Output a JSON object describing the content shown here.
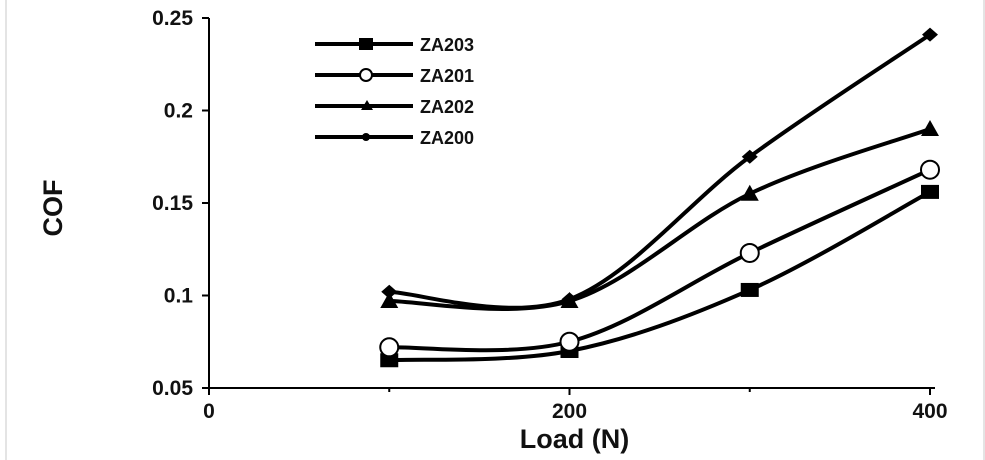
{
  "chart_data": {
    "type": "line",
    "title": "",
    "xlabel": "Load (N)",
    "ylabel": "COF",
    "xlim": [
      0,
      400
    ],
    "ylim": [
      0.05,
      0.25
    ],
    "xticks": [
      0,
      200,
      400
    ],
    "xtick_labels": [
      "0",
      "200",
      "400"
    ],
    "yticks": [
      0.05,
      0.1,
      0.15,
      0.2,
      0.25
    ],
    "ytick_labels": [
      "0.05",
      "0.1",
      "0.15",
      "0.2",
      "0.25"
    ],
    "grid": false,
    "legend_position": "top-left",
    "series": [
      {
        "name": "ZA203",
        "marker": "square",
        "x": [
          100,
          200,
          300,
          400
        ],
        "y": [
          0.065,
          0.07,
          0.103,
          0.156
        ]
      },
      {
        "name": "ZA201",
        "marker": "circle-open",
        "x": [
          100,
          200,
          300,
          400
        ],
        "y": [
          0.072,
          0.075,
          0.123,
          0.168
        ]
      },
      {
        "name": "ZA202",
        "marker": "triangle",
        "x": [
          100,
          200,
          300,
          400
        ],
        "y": [
          0.097,
          0.097,
          0.155,
          0.19
        ]
      },
      {
        "name": "ZA200",
        "marker": "diamond",
        "x": [
          100,
          200,
          300,
          400
        ],
        "y": [
          0.102,
          0.098,
          0.175,
          0.241
        ]
      }
    ]
  }
}
